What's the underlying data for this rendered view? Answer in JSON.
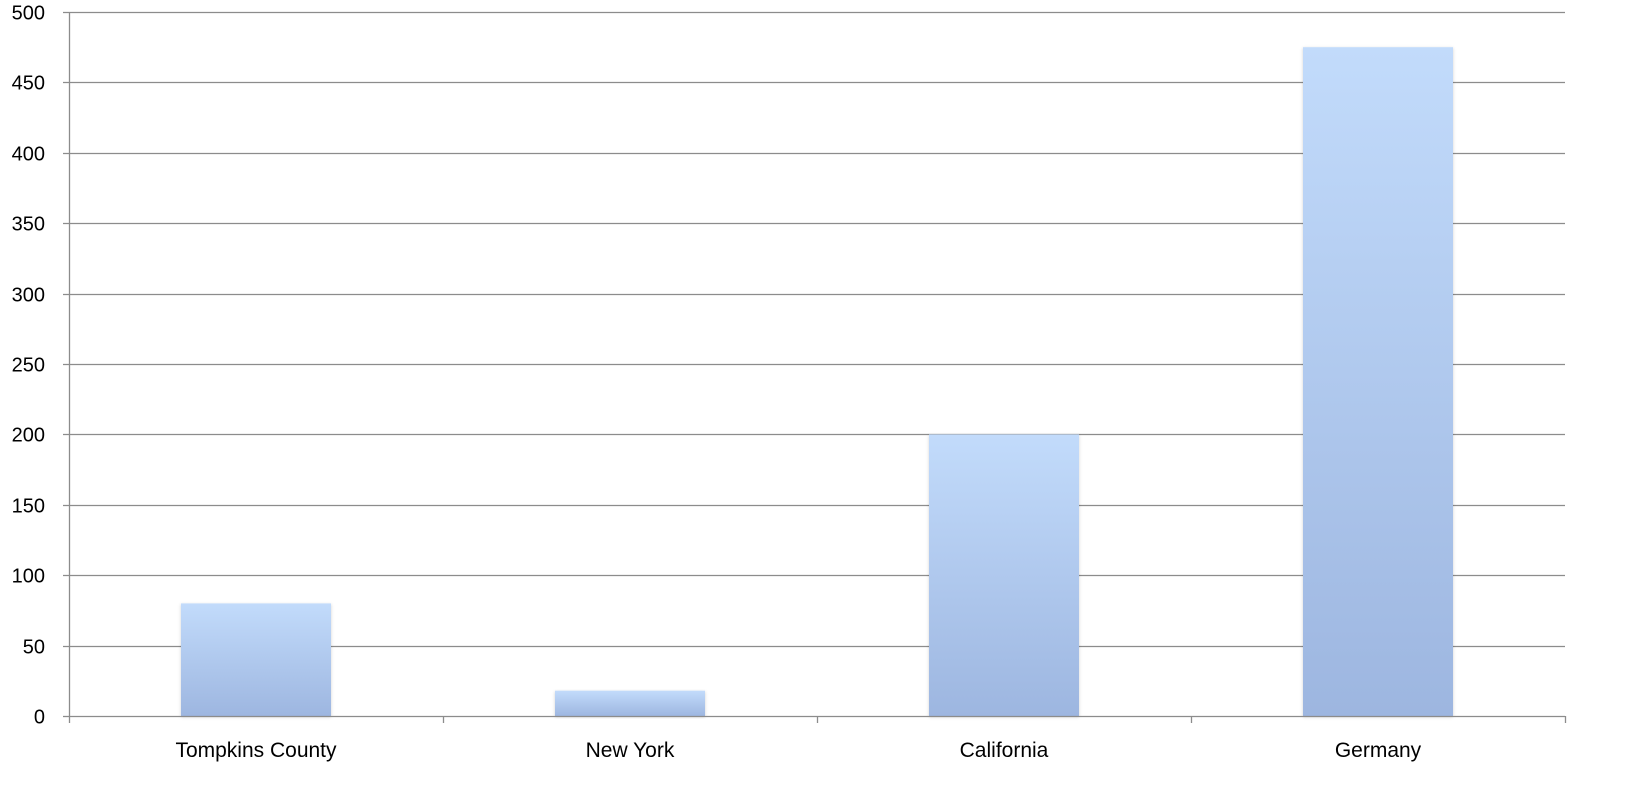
{
  "chart_data": {
    "type": "bar",
    "title": "",
    "xlabel": "",
    "ylabel": "",
    "categories": [
      "Tompkins County",
      "New York",
      "California",
      "Germany"
    ],
    "values": [
      80,
      18,
      200,
      475
    ],
    "ylim": [
      0,
      500
    ],
    "yticks": [
      0,
      50,
      100,
      150,
      200,
      250,
      300,
      350,
      400,
      450,
      500
    ],
    "grid": true,
    "legend": "none",
    "colors": {
      "bar_top": "#c2dbfb",
      "bar_bottom": "#9db6e0",
      "grid": "#8c8c8c",
      "axis": "#8c8c8c",
      "text": "#000000"
    }
  }
}
